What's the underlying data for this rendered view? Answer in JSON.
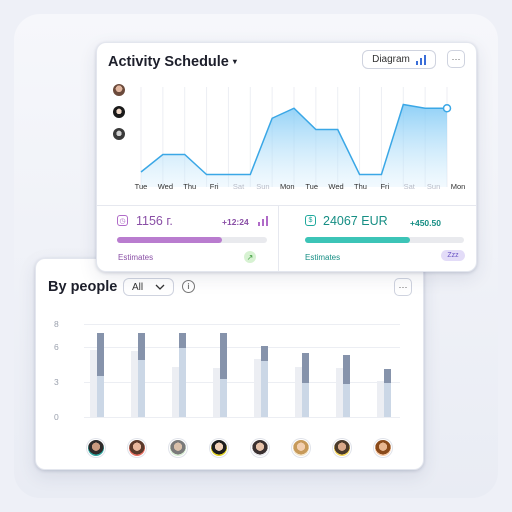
{
  "activity": {
    "title": "Activity Schedule",
    "diagram_label": "Diagram",
    "more_label": "···",
    "days": [
      "Tue",
      "Wed",
      "Thu",
      "Fri",
      "Sat",
      "Sun",
      "Mon",
      "Tue",
      "Wed",
      "Thu",
      "Fri",
      "Sat",
      "Sun",
      "Mon"
    ],
    "weekend_days": [
      4,
      5,
      11,
      12
    ],
    "line_values": [
      1.2,
      2.6,
      2.6,
      1.0,
      1.0,
      1.0,
      5.5,
      6.3,
      4.6,
      4.6,
      1.0,
      1.0,
      6.6,
      6.3,
      6.3
    ],
    "stats": {
      "left": {
        "value": "1156 г.",
        "delta": "+12:24",
        "progress": 0.7,
        "estimates_label": "Estimates"
      },
      "right": {
        "value": "24067 EUR",
        "delta": "+450.50",
        "progress": 0.66,
        "estimates_label": "Estimates",
        "badge": "Zzz"
      }
    },
    "colors": {
      "line": "#3aa7e6",
      "purple": "#b06bc8",
      "teal": "#2ec3b6"
    }
  },
  "people": {
    "title": "By people",
    "filter_value": "All",
    "more_label": "···",
    "y_ticks": [
      "8",
      "6",
      "3",
      "0"
    ],
    "chart_data": {
      "type": "bar",
      "categories": [
        "1",
        "2",
        "3",
        "4",
        "5",
        "6",
        "7",
        "8"
      ],
      "series": [
        {
          "values": [
            5.8,
            5.7,
            4.3,
            4.2,
            5.0,
            4.3,
            4.2,
            3.1
          ]
        },
        {
          "values": [
            7.2,
            7.2,
            7.2,
            7.2,
            6.1,
            5.5,
            5.3,
            4.1
          ]
        },
        {
          "values": [
            3.5,
            4.9,
            5.9,
            3.3,
            4.8,
            2.9,
            2.8,
            2.9
          ]
        }
      ],
      "ylim": [
        0,
        8
      ]
    }
  }
}
